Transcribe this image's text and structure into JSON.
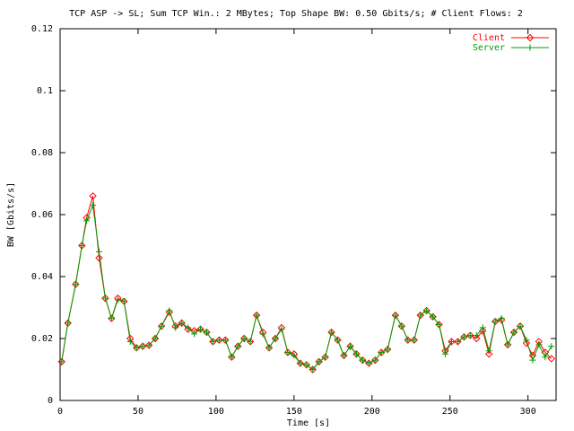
{
  "chart_data": {
    "type": "line",
    "title": "TCP ASP -> SL; Sum TCP Win.: 2 MBytes; Top Shape BW: 0.50 Gbits/s; # Client Flows: 2",
    "x_label": "Time [s]",
    "y_label": "BW [Gbits/s]",
    "x": [
      1,
      5,
      10,
      14,
      17,
      21,
      25,
      29,
      33,
      37,
      41,
      45,
      49,
      53,
      57,
      61,
      65,
      70,
      74,
      78,
      82,
      86,
      90,
      94,
      98,
      102,
      106,
      110,
      114,
      118,
      122,
      126,
      130,
      134,
      138,
      142,
      146,
      150,
      154,
      158,
      162,
      166,
      170,
      174,
      178,
      182,
      186,
      190,
      194,
      198,
      202,
      206,
      210,
      215,
      219,
      223,
      227,
      231,
      235,
      239,
      243,
      247,
      251,
      255,
      259,
      263,
      267,
      271,
      275,
      279,
      283,
      287,
      291,
      295,
      299,
      303,
      307,
      311,
      315
    ],
    "series": [
      {
        "name": "Client",
        "color": "#ff0000",
        "marker": "diamond",
        "values": [
          0.0125,
          0.025,
          0.0375,
          0.05,
          0.059,
          0.066,
          0.046,
          0.033,
          0.0265,
          0.033,
          0.032,
          0.02,
          0.017,
          0.0175,
          0.0178,
          0.02,
          0.024,
          0.0285,
          0.024,
          0.025,
          0.023,
          0.0225,
          0.023,
          0.022,
          0.019,
          0.0195,
          0.0195,
          0.014,
          0.0175,
          0.02,
          0.019,
          0.0275,
          0.022,
          0.017,
          0.02,
          0.0235,
          0.0155,
          0.015,
          0.012,
          0.0115,
          0.01,
          0.0125,
          0.014,
          0.022,
          0.0195,
          0.0145,
          0.0175,
          0.015,
          0.013,
          0.012,
          0.013,
          0.0155,
          0.0165,
          0.0275,
          0.024,
          0.0195,
          0.0195,
          0.0275,
          0.029,
          0.027,
          0.0245,
          0.016,
          0.019,
          0.019,
          0.0205,
          0.021,
          0.02,
          0.0225,
          0.015,
          0.0255,
          0.026,
          0.018,
          0.022,
          0.024,
          0.0185,
          0.0145,
          0.019,
          0.0155,
          0.0135
        ]
      },
      {
        "name": "Server",
        "color": "#00a000",
        "marker": "plus",
        "values": [
          0.0125,
          0.025,
          0.0375,
          0.05,
          0.058,
          0.063,
          0.048,
          0.033,
          0.0265,
          0.0325,
          0.032,
          0.019,
          0.017,
          0.0175,
          0.0178,
          0.02,
          0.024,
          0.029,
          0.0235,
          0.025,
          0.0235,
          0.0215,
          0.023,
          0.022,
          0.019,
          0.0195,
          0.0195,
          0.014,
          0.0175,
          0.02,
          0.019,
          0.0275,
          0.0215,
          0.017,
          0.02,
          0.023,
          0.0155,
          0.0145,
          0.012,
          0.0115,
          0.01,
          0.0125,
          0.014,
          0.022,
          0.0195,
          0.0145,
          0.0175,
          0.015,
          0.013,
          0.012,
          0.013,
          0.0155,
          0.0165,
          0.0275,
          0.024,
          0.0195,
          0.0195,
          0.0275,
          0.029,
          0.027,
          0.0245,
          0.015,
          0.019,
          0.019,
          0.0205,
          0.021,
          0.021,
          0.0235,
          0.016,
          0.0255,
          0.0265,
          0.018,
          0.022,
          0.024,
          0.0195,
          0.013,
          0.018,
          0.014,
          0.0175
        ]
      }
    ],
    "xlim": [
      0,
      318
    ],
    "xticks": [
      0,
      50,
      100,
      150,
      200,
      250,
      300
    ],
    "ylim": [
      0,
      0.12
    ],
    "yticks": [
      0,
      0.02,
      0.04,
      0.06,
      0.08,
      0.1,
      0.12
    ],
    "legend": "top-right",
    "grid": false
  }
}
